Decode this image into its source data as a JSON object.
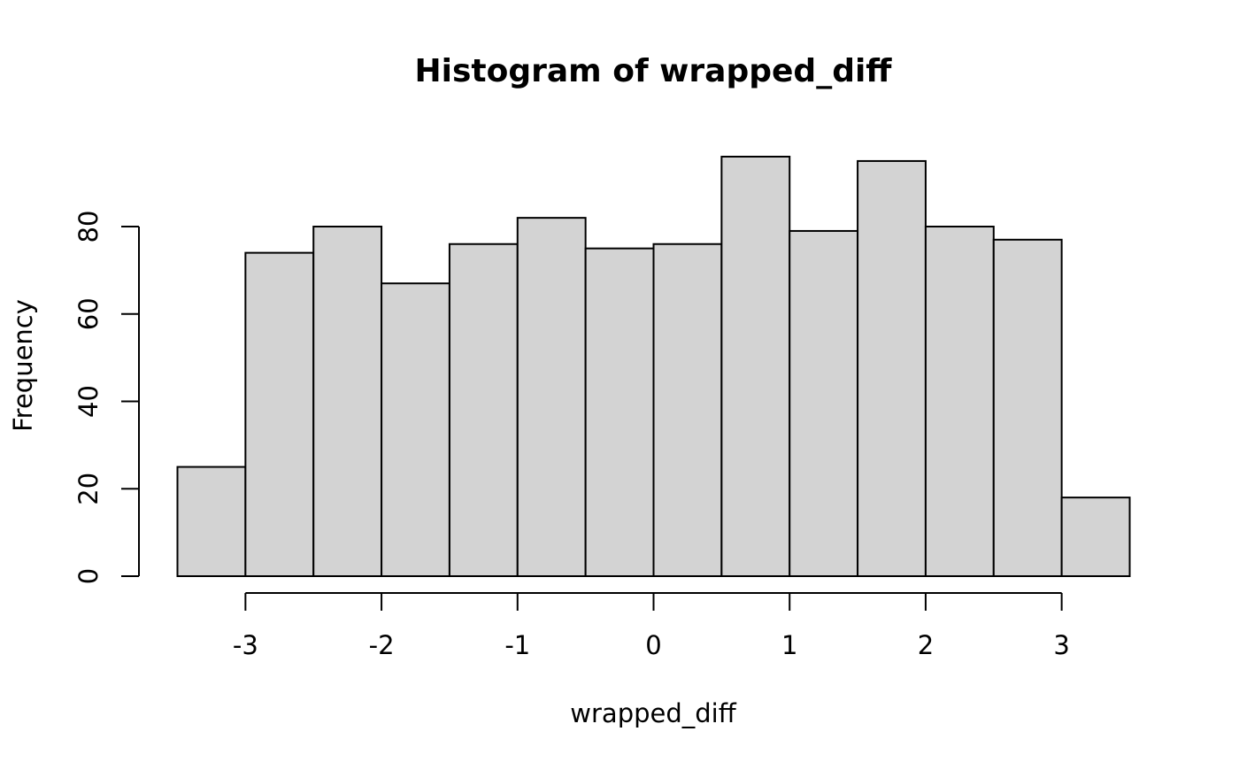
{
  "chart_data": {
    "type": "bar",
    "title": "Histogram of wrapped_diff",
    "xlabel": "wrapped_diff",
    "ylabel": "Frequency",
    "bin_edges": [
      -3.5,
      -3,
      -2.5,
      -2,
      -1.5,
      -1,
      -0.5,
      0,
      0.5,
      1,
      1.5,
      2,
      2.5,
      3,
      3.5
    ],
    "values": [
      25,
      74,
      80,
      67,
      76,
      82,
      75,
      76,
      96,
      79,
      95,
      80,
      77,
      18
    ],
    "xlim": [
      -3.5,
      3.5
    ],
    "ylim": [
      0,
      100
    ],
    "x_ticks": [
      {
        "value": -3,
        "label": "-3"
      },
      {
        "value": -2,
        "label": "-2"
      },
      {
        "value": -1,
        "label": "-1"
      },
      {
        "value": 0,
        "label": "0"
      },
      {
        "value": 1,
        "label": "1"
      },
      {
        "value": 2,
        "label": "2"
      },
      {
        "value": 3,
        "label": "3"
      }
    ],
    "y_ticks": [
      {
        "value": 0,
        "label": "0"
      },
      {
        "value": 20,
        "label": "20"
      },
      {
        "value": 40,
        "label": "40"
      },
      {
        "value": 60,
        "label": "60"
      },
      {
        "value": 80,
        "label": "80"
      }
    ],
    "grid": false,
    "colors": {
      "bar_fill": "#d3d3d3",
      "bar_stroke": "#000000",
      "background": "#ffffff"
    }
  }
}
